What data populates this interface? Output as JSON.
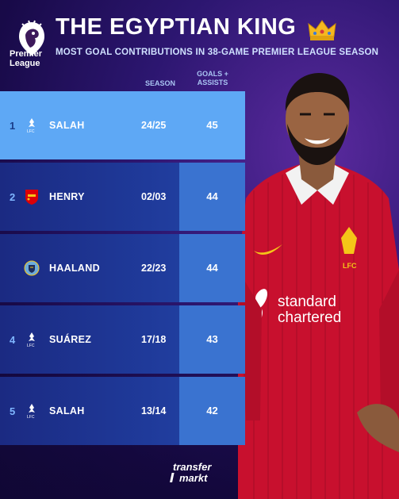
{
  "header": {
    "brand_line1": "Premier",
    "brand_line2": "League",
    "title": "THE EGYPTIAN KING",
    "subtitle": "MOST GOAL CONTRIBUTIONS IN 38-GAME PREMIER LEAGUE SEASON"
  },
  "columns": {
    "season": "SEASON",
    "ga_line1": "GOALS +",
    "ga_line2": "ASSISTS"
  },
  "rows": [
    {
      "rank": "1",
      "club": "Liverpool",
      "name": "SALAH",
      "season": "24/25",
      "value": "45"
    },
    {
      "rank": "2",
      "club": "Arsenal",
      "name": "HENRY",
      "season": "02/03",
      "value": "44"
    },
    {
      "rank": "",
      "club": "Manchester City",
      "name": "HAALAND",
      "season": "22/23",
      "value": "44"
    },
    {
      "rank": "4",
      "club": "Liverpool",
      "name": "SUÁREZ",
      "season": "17/18",
      "value": "43"
    },
    {
      "rank": "5",
      "club": "Liverpool",
      "name": "SALAH",
      "season": "13/14",
      "value": "42"
    }
  ],
  "kit": {
    "sponsor_line1": "standard",
    "sponsor_line2": "chartered",
    "badge": "LFC"
  },
  "footer": {
    "logo_line1": "transfer",
    "logo_line2": "markt"
  },
  "colors": {
    "highlight_row": "#5ea8f5",
    "row_bg": "#1f3a9a",
    "value_box": "#3a73d0",
    "kit_red": "#c8102e"
  },
  "icons": [
    "premier-league-lion-icon",
    "crown-icon",
    "liverpool-crest-icon",
    "arsenal-crest-icon",
    "man-city-crest-icon"
  ]
}
